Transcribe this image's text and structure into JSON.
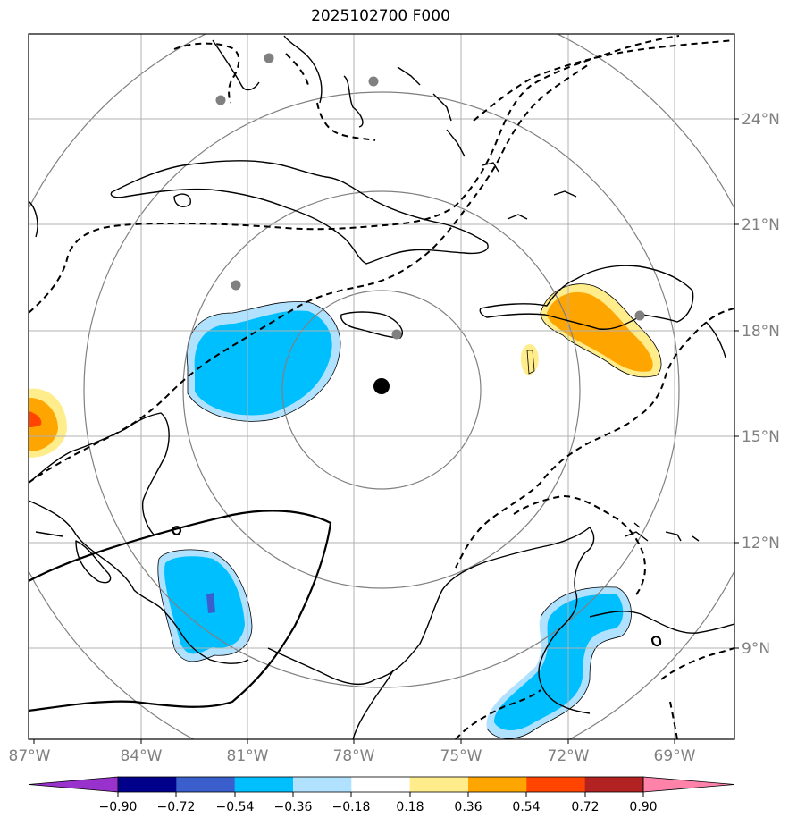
{
  "title": "2025102700 F000",
  "map": {
    "lon_range": [
      -87,
      -67.5
    ],
    "lat_range": [
      6.5,
      26.5
    ],
    "lon_ticks": [
      "87°W",
      "84°W",
      "81°W",
      "78°W",
      "75°W",
      "72°W",
      "69°W"
    ],
    "lat_ticks": [
      "24°N",
      "21°N",
      "18°N",
      "15°N",
      "12°N",
      "9°N"
    ],
    "center_marker": {
      "lon": -77.3,
      "lat": 16.4
    },
    "range_rings": 4,
    "station_dots": 6,
    "grid": true
  },
  "colorbar": {
    "labels": [
      "−0.90",
      "−0.72",
      "−0.54",
      "−0.36",
      "−0.18",
      "0.18",
      "0.36",
      "0.54",
      "0.72",
      "0.90"
    ],
    "colors": [
      "#9932CC",
      "#00008B",
      "#3A5FCD",
      "#00BFFF",
      "#B0E2FF",
      "#FFFFFF",
      "#FFEC8B",
      "#FFA500",
      "#FF4500",
      "#B22222",
      "#FF82AB"
    ]
  }
}
